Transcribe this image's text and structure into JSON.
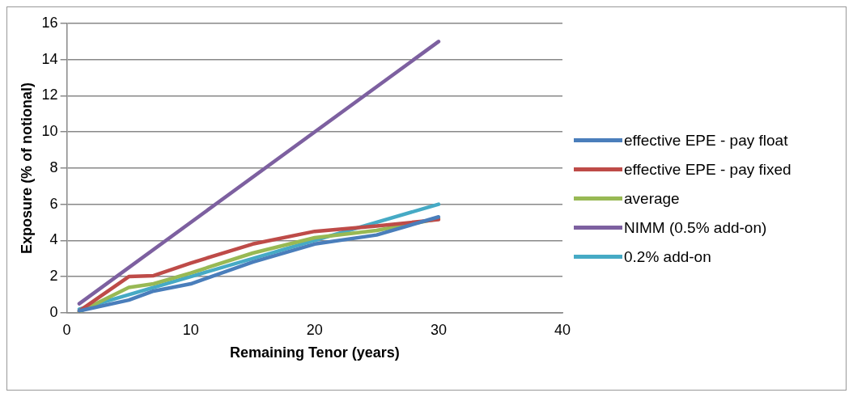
{
  "chart_data": {
    "type": "line",
    "xlabel": "Remaining Tenor (years)",
    "ylabel": "Exposure (% of notional)",
    "xlim": [
      0,
      40
    ],
    "xticks": [
      0,
      10,
      20,
      30,
      40
    ],
    "ylim": [
      0,
      16
    ],
    "yticks": [
      0,
      2,
      4,
      6,
      8,
      10,
      12,
      14,
      16
    ],
    "grid": "y",
    "legend": "right",
    "marker": "none",
    "line_style": "solid",
    "series": [
      {
        "name": "effective EPE - pay float",
        "color": "#4a7ebb",
        "x": [
          1,
          5,
          7,
          10,
          15,
          20,
          25,
          30
        ],
        "values": [
          0.1,
          0.7,
          1.2,
          1.6,
          2.8,
          3.8,
          4.3,
          5.3
        ]
      },
      {
        "name": "effective EPE - pay fixed",
        "color": "#be4b48",
        "x": [
          1,
          5,
          7,
          10,
          15,
          20,
          25,
          30
        ],
        "values": [
          0.1,
          2.0,
          2.05,
          2.75,
          3.8,
          4.5,
          4.8,
          5.15
        ]
      },
      {
        "name": "average",
        "color": "#98b954",
        "x": [
          1,
          5,
          7,
          10,
          15,
          20,
          25,
          30
        ],
        "values": [
          0.05,
          1.4,
          1.6,
          2.2,
          3.3,
          4.15,
          4.55,
          5.2
        ]
      },
      {
        "name": "NIMM (0.5% add-on)",
        "color": "#7d60a0",
        "x": [
          1,
          30
        ],
        "values": [
          0.5,
          15
        ]
      },
      {
        "name": "0.2% add-on",
        "color": "#46aac5",
        "x": [
          1,
          30
        ],
        "values": [
          0.2,
          6
        ]
      }
    ]
  }
}
